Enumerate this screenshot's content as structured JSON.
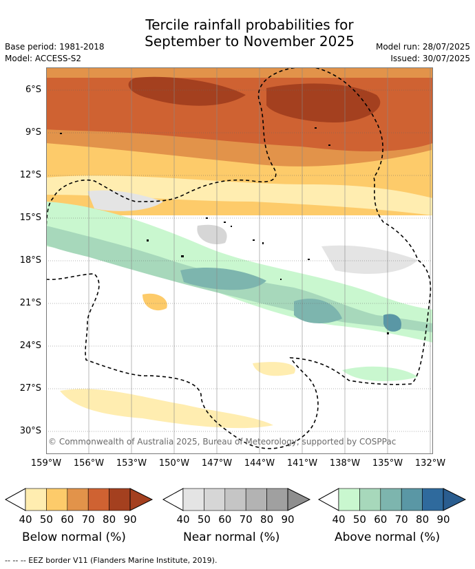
{
  "title_line1": "Tercile rainfall probabilities for",
  "title_line2": "September to November 2025",
  "base_period": "Base period: 1981-2018",
  "model": "Model: ACCESS-S2",
  "model_run": "Model run: 28/07/2025",
  "issued": "Issued: 30/07/2025",
  "lat_labels": [
    "6°S",
    "9°S",
    "12°S",
    "15°S",
    "18°S",
    "21°S",
    "24°S",
    "27°S",
    "30°S"
  ],
  "lon_labels": [
    "159°W",
    "156°W",
    "153°W",
    "150°W",
    "147°W",
    "144°W",
    "141°W",
    "138°W",
    "135°W",
    "132°W"
  ],
  "copyright": "© Commonwealth of Australia 2025, Bureau of Meteorology, supported by COSPPac",
  "legends": [
    {
      "caption": "Below normal (%)",
      "ticks": [
        "40",
        "50",
        "60",
        "70",
        "80",
        "90"
      ],
      "colors": [
        "#ffedb0",
        "#fdcb6a",
        "#e2934a",
        "#cf6232",
        "#a4401f",
        "#a4401f"
      ]
    },
    {
      "caption": "Near normal (%)",
      "ticks": [
        "40",
        "50",
        "60",
        "70",
        "80",
        "90"
      ],
      "colors": [
        "#e4e4e4",
        "#d6d6d6",
        "#c5c5c5",
        "#b3b3b3",
        "#a0a0a0",
        "#8e8e8e"
      ]
    },
    {
      "caption": "Above normal (%)",
      "ticks": [
        "40",
        "50",
        "60",
        "70",
        "80",
        "90"
      ],
      "colors": [
        "#c9f7cf",
        "#a7d8bb",
        "#7db5ae",
        "#5a97a5",
        "#2f6a9d",
        "#2a5d8f"
      ]
    }
  ],
  "footnote": "--  --  -- EEZ border V11 (Flanders Marine Institute, 2019)."
}
